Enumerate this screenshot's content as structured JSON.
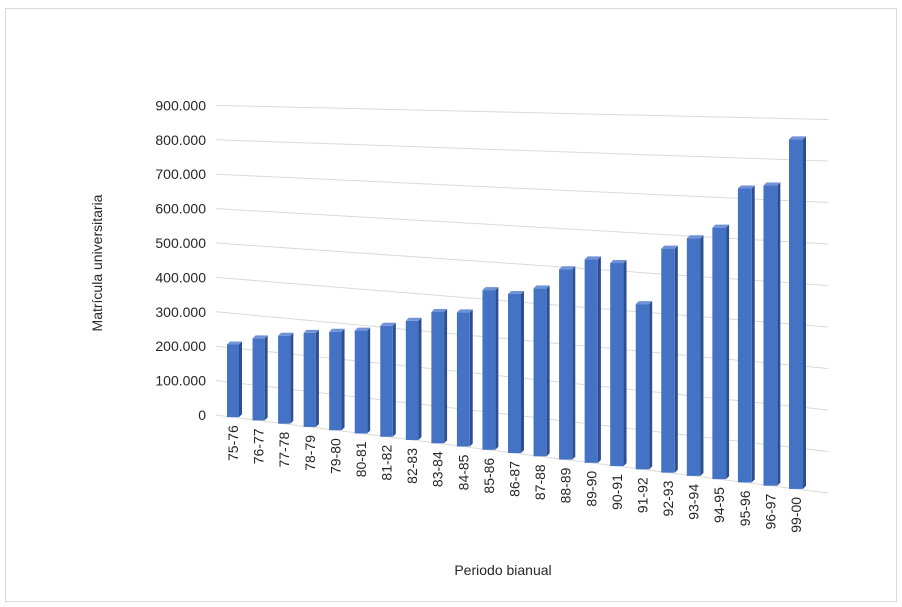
{
  "chart_data": {
    "type": "bar",
    "title": "",
    "xlabel": "Periodo bianual",
    "ylabel": "Matrícula universitaria",
    "ylim": [
      0,
      900000
    ],
    "grid": true,
    "bar_color": "#4472c4",
    "y_ticks": [
      "0",
      "100.000",
      "200.000",
      "300.000",
      "400.000",
      "500.000",
      "600.000",
      "700.000",
      "800.000",
      "900.000"
    ],
    "categories": [
      "75-76",
      "76-77",
      "77-78",
      "78-79",
      "79-80",
      "80-81",
      "81-82",
      "82-83",
      "83-84",
      "84-85",
      "85-86",
      "86-87",
      "87-88",
      "88-89",
      "89-90",
      "90-91",
      "91-92",
      "92-93",
      "93-94",
      "94-95",
      "95-96",
      "96-97",
      "99-00"
    ],
    "values": [
      210000,
      235000,
      250000,
      265000,
      275000,
      285000,
      305000,
      325000,
      355000,
      360000,
      425000,
      420000,
      440000,
      495000,
      525000,
      520000,
      420000,
      565000,
      595000,
      625000,
      725000,
      735000,
      850000
    ]
  }
}
